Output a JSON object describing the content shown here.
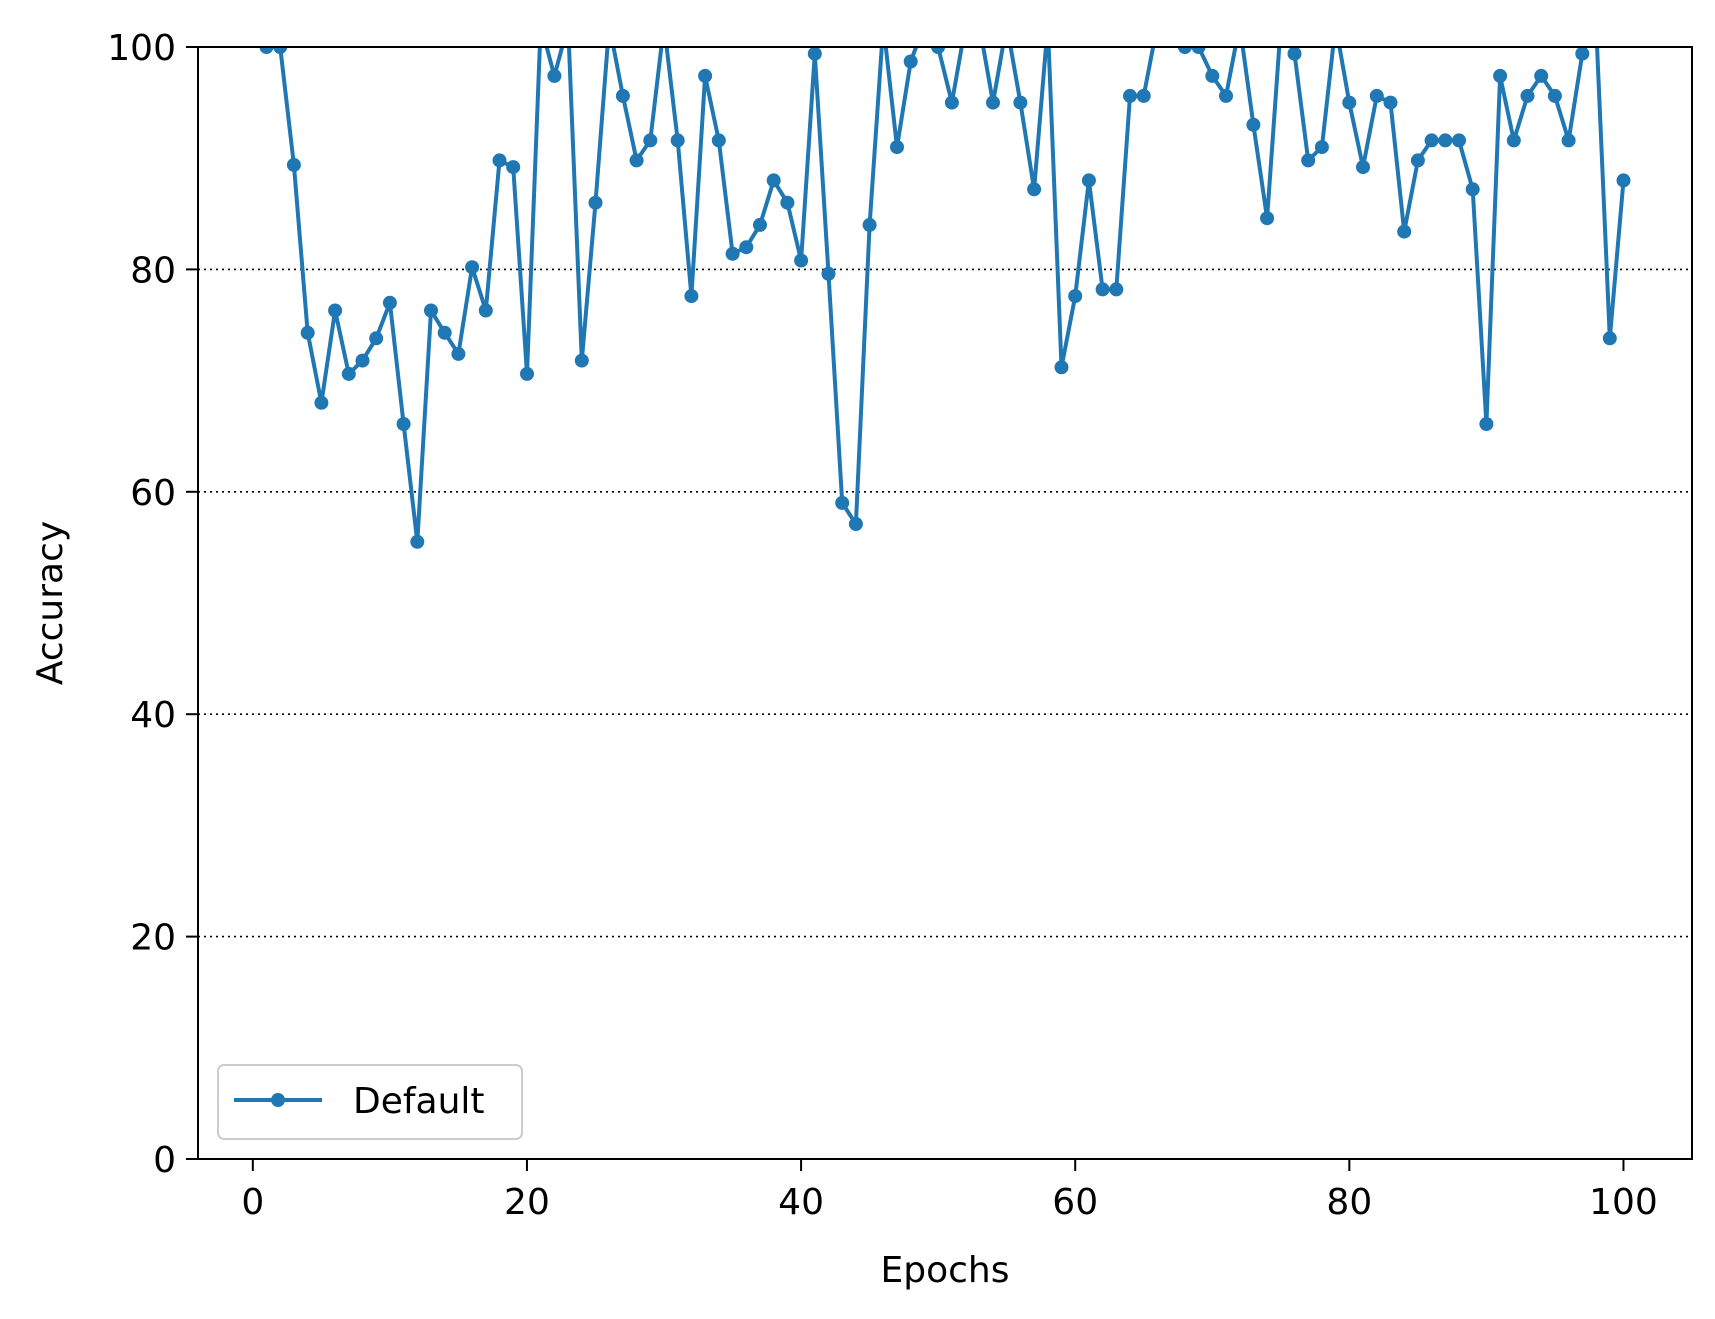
{
  "chart_data": {
    "type": "line",
    "xlabel": "Epochs",
    "ylabel": "Accuracy",
    "xlim": [
      -4,
      105
    ],
    "ylim": [
      0,
      100
    ],
    "x_ticks": [
      0,
      20,
      40,
      60,
      80,
      100
    ],
    "y_ticks": [
      0,
      20,
      40,
      60,
      80,
      100
    ],
    "grid": "horizontal dotted",
    "legend_position": "lower-left",
    "series": [
      {
        "name": "Default",
        "color": "#1f77b4",
        "marker": "circle",
        "x": [
          1,
          2,
          3,
          4,
          5,
          6,
          7,
          8,
          9,
          10,
          11,
          12,
          13,
          14,
          15,
          16,
          17,
          18,
          19,
          20,
          21,
          22,
          23,
          24,
          25,
          26,
          27,
          28,
          29,
          30,
          31,
          32,
          33,
          34,
          35,
          36,
          37,
          38,
          39,
          40,
          41,
          42,
          43,
          44,
          45,
          46,
          47,
          48,
          49,
          50,
          51,
          52,
          53,
          54,
          55,
          56,
          57,
          58,
          59,
          60,
          61,
          62,
          63,
          64,
          65,
          66,
          67,
          68,
          69,
          70,
          71,
          72,
          73,
          74,
          75,
          76,
          77,
          78,
          79,
          80,
          81,
          82,
          83,
          84,
          85,
          86,
          87,
          88,
          89,
          90,
          91,
          92,
          93,
          94,
          95,
          96,
          97,
          98,
          99,
          100
        ],
        "y": [
          100.0,
          100.0,
          89.4,
          74.3,
          68.0,
          76.3,
          70.6,
          71.8,
          73.8,
          77.0,
          66.1,
          55.5,
          76.3,
          74.3,
          72.4,
          80.2,
          76.3,
          89.8,
          89.2,
          70.6,
          102.0,
          97.4,
          102.0,
          71.8,
          86.0,
          102.0,
          95.6,
          89.8,
          91.6,
          102.0,
          91.6,
          77.6,
          97.4,
          91.6,
          81.4,
          82.0,
          84.0,
          88.0,
          86.0,
          80.8,
          99.4,
          79.6,
          59.0,
          57.1,
          84.0,
          102.0,
          91.0,
          98.7,
          102.0,
          100.0,
          95.0,
          102.0,
          102.0,
          95.0,
          102.0,
          95.0,
          87.2,
          102.0,
          71.2,
          77.6,
          88.0,
          78.2,
          78.2,
          95.6,
          95.6,
          102.0,
          102.0,
          100.0,
          100.0,
          97.4,
          95.6,
          102.0,
          93.0,
          84.6,
          102.0,
          99.4,
          89.8,
          91.0,
          102.0,
          95.0,
          89.2,
          95.6,
          95.0,
          83.4,
          89.8,
          91.6,
          91.6,
          91.6,
          87.2,
          66.1,
          97.4,
          91.6,
          95.6,
          97.4,
          95.6,
          91.6,
          99.4,
          102.0,
          73.8,
          88.0
        ]
      }
    ]
  }
}
